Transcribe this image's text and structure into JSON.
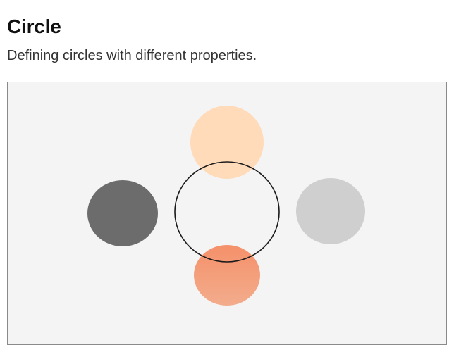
{
  "header": {
    "title": "Circle",
    "subtitle": "Defining circles with different properties."
  },
  "canvas": {
    "circles": [
      {
        "name": "peach-circle",
        "fill": "#ffd8b4",
        "stroke": "none"
      },
      {
        "name": "dark-gray-circle",
        "fill": "#5f5f5f",
        "stroke": "none"
      },
      {
        "name": "light-gray-circle",
        "fill": "#cbcbcb",
        "stroke": "none"
      },
      {
        "name": "salmon-circle",
        "fill": "#f29a76",
        "stroke": "none"
      },
      {
        "name": "outlined-circle",
        "fill": "none",
        "stroke": "#1a1a1a"
      }
    ]
  }
}
